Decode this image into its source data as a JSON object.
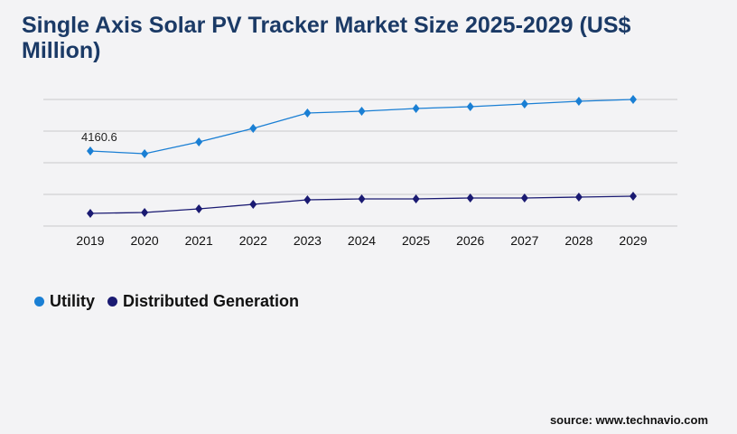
{
  "title": "Single Axis Solar PV Tracker Market Size 2025-2029 (US$ Million)",
  "source": "source: www.technavio.com",
  "chart_data": {
    "type": "line",
    "title": "Single Axis Solar PV Tracker Market Size 2025-2029 (US$ Million)",
    "categories": [
      "2019",
      "2020",
      "2021",
      "2022",
      "2023",
      "2024",
      "2025",
      "2026",
      "2027",
      "2028",
      "2029"
    ],
    "series": [
      {
        "name": "Utility",
        "color": "#1a7fd4",
        "values": [
          4160.6,
          4010,
          4662,
          5414,
          6266,
          6367,
          6517,
          6617,
          6768,
          6918,
          7018
        ]
      },
      {
        "name": "Distributed Generation",
        "color": "#1a1a72",
        "values": [
          702,
          752,
          952,
          1203,
          1454,
          1504,
          1504,
          1554,
          1554,
          1604,
          1654
        ]
      }
    ],
    "annotations": [
      {
        "series": "Utility",
        "category": "2019",
        "label": "4160.6"
      }
    ],
    "ylim": [
      0,
      7018
    ],
    "grid": true,
    "legend": "bottom-left"
  }
}
